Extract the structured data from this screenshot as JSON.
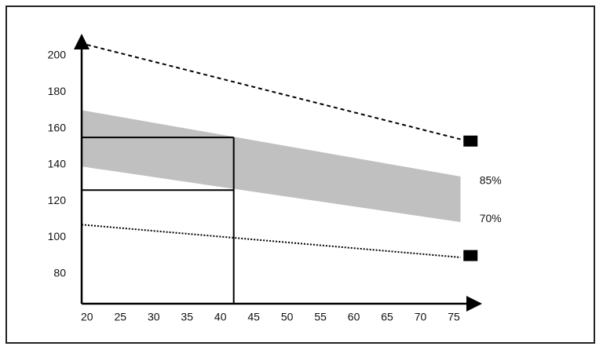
{
  "chart_data": {
    "type": "line",
    "xlim": [
      19.2,
      79
    ],
    "ylim": [
      63.5,
      211.2
    ],
    "xticks": [
      20,
      25,
      30,
      35,
      40,
      45,
      50,
      55,
      60,
      65,
      70,
      75
    ],
    "yticks": [
      80,
      100,
      120,
      140,
      160,
      180,
      200
    ],
    "series": [
      {
        "style": "dashed",
        "color": "#000000",
        "x": [
          20,
          76
        ],
        "values": [
          206,
          154
        ]
      },
      {
        "style": "dotted",
        "color": "#000000",
        "x": [
          19.2,
          76
        ],
        "values": [
          107,
          89
        ]
      }
    ],
    "band": {
      "color": "#c0c0c0",
      "x": [
        19.2,
        76
      ],
      "upper": [
        170,
        133.5
      ],
      "lower": [
        139,
        108.4
      ]
    },
    "points": {
      "color": "#000000",
      "x": [
        77.5,
        77.5
      ],
      "values": [
        153,
        90
      ]
    },
    "guide": {
      "x": 42,
      "y": [
        155,
        126
      ]
    },
    "annotations": [
      {
        "text": "85%",
        "x": 80.5,
        "y": 131
      },
      {
        "text": "70%",
        "x": 80.5,
        "y": 110
      }
    ]
  }
}
